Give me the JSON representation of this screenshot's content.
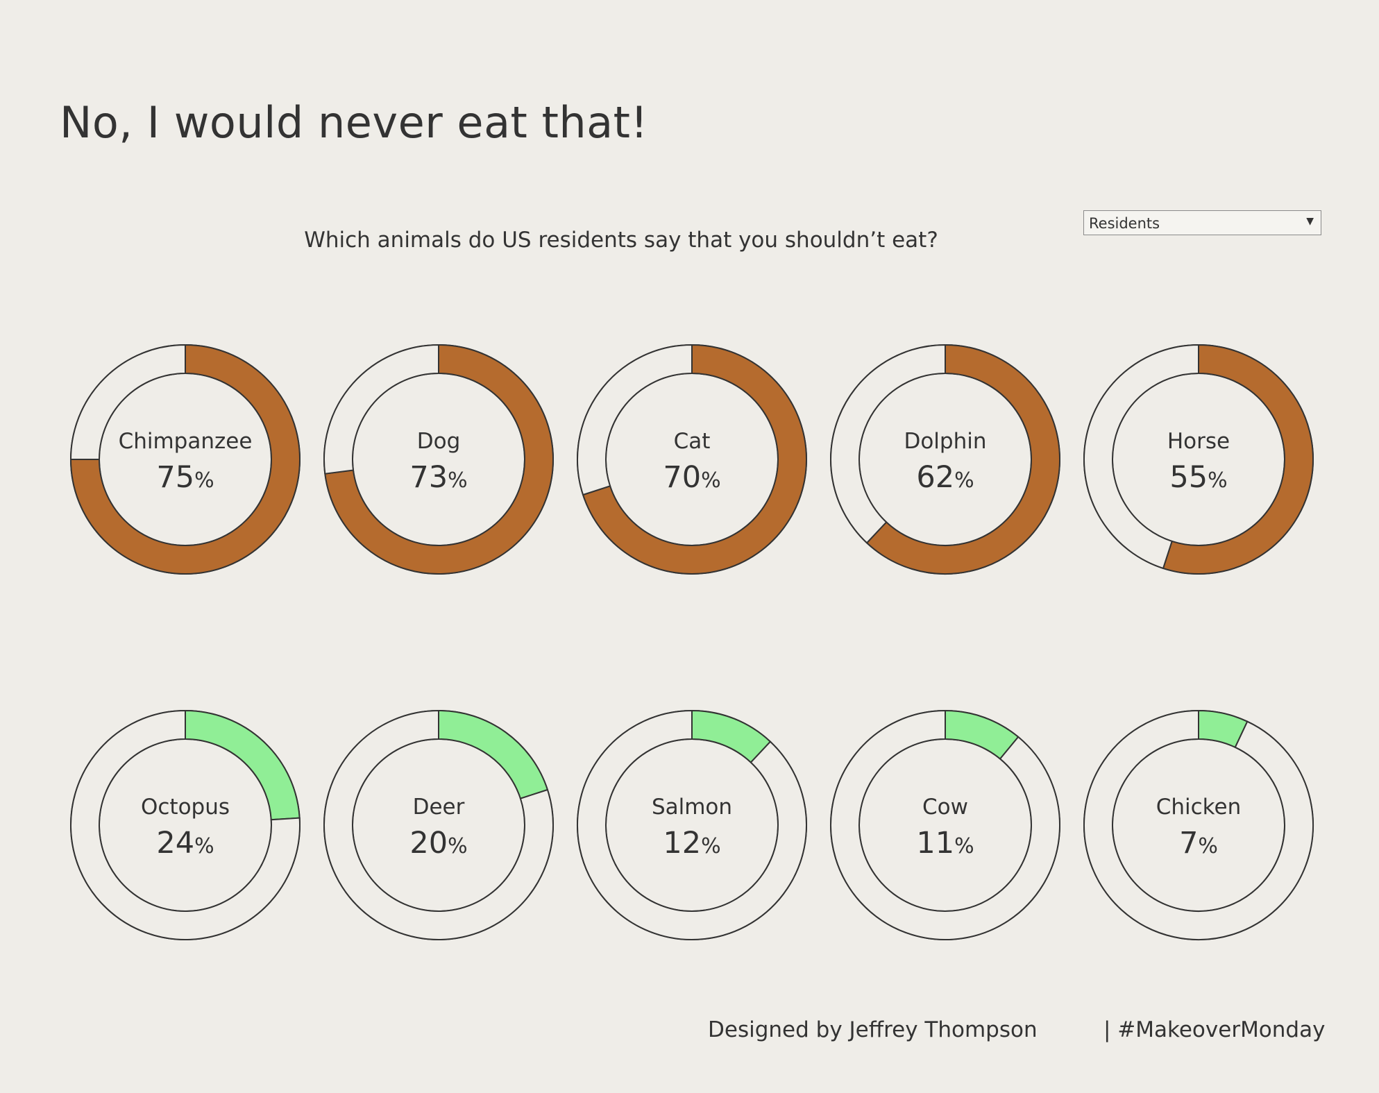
{
  "title": "No, I would never eat that!",
  "filter": {
    "selected": "Residents"
  },
  "footer": {
    "credit": "Designed by Jeffrey Thompson",
    "tag": "| #MakeoverMonday"
  },
  "colors": {
    "background": "#efede8",
    "high_series": "#b56b2e",
    "low_series": "#90ee96",
    "ring_empty": "#efede8",
    "stroke": "#333333"
  },
  "chart_data": {
    "type": "donut",
    "title": "Which animals do US residents say that you shouldn’t eat?",
    "unit": "%",
    "rows": [
      {
        "color": "#b56b2e",
        "items": [
          {
            "label": "Chimpanzee",
            "value": 75
          },
          {
            "label": "Dog",
            "value": 73
          },
          {
            "label": "Cat",
            "value": 70
          },
          {
            "label": "Dolphin",
            "value": 62
          },
          {
            "label": "Horse",
            "value": 55
          }
        ]
      },
      {
        "color": "#90ee96",
        "items": [
          {
            "label": "Octopus",
            "value": 24
          },
          {
            "label": "Deer",
            "value": 20
          },
          {
            "label": "Salmon",
            "value": 12
          },
          {
            "label": "Cow",
            "value": 11
          },
          {
            "label": "Chicken",
            "value": 7
          }
        ]
      }
    ]
  }
}
